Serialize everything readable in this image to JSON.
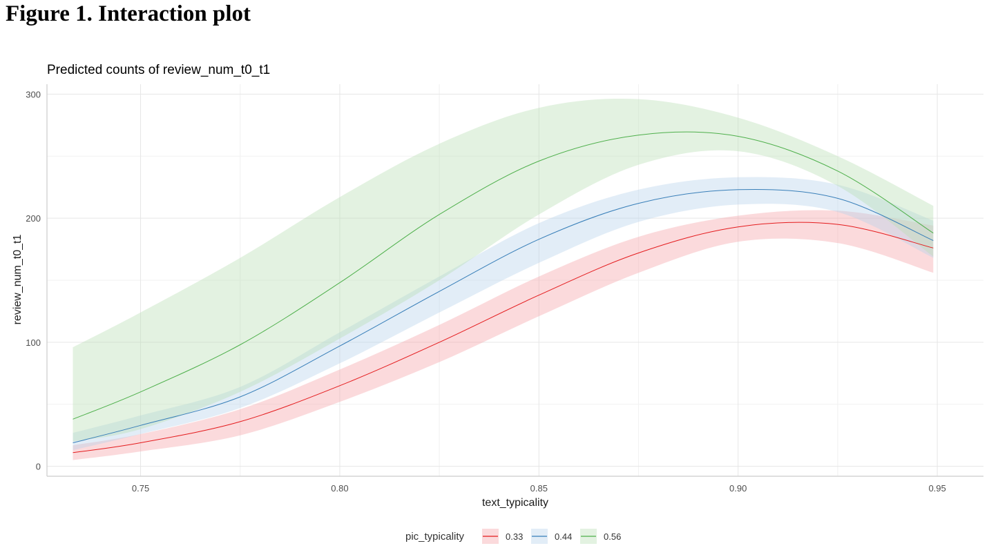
{
  "figure": {
    "caption": "Figure 1. Interaction plot"
  },
  "chart_data": {
    "type": "line",
    "title": "Predicted counts of review_num_t0_t1",
    "xlabel": "text_typicality",
    "ylabel": "review_num_t0_t1",
    "xlim": [
      0.7265,
      0.9616
    ],
    "ylim": [
      -8,
      308
    ],
    "x_ticks": [
      0.75,
      0.8,
      0.85,
      0.9,
      0.95
    ],
    "x_tick_labels": [
      "0.75",
      "0.80",
      "0.85",
      "0.90",
      "0.95"
    ],
    "y_ticks": [
      0,
      100,
      200,
      300
    ],
    "y_tick_labels": [
      "0",
      "100",
      "200",
      "300"
    ],
    "grid": true,
    "legend": {
      "title": "pic_typicality",
      "position": "bottom"
    },
    "x": [
      0.733,
      0.75,
      0.775,
      0.8,
      0.825,
      0.85,
      0.875,
      0.9,
      0.925,
      0.949
    ],
    "series": [
      {
        "name": "0.33",
        "color": "#E41A1C",
        "fill": "#F4A3A8",
        "values": [
          11,
          19,
          36,
          65,
          100,
          138,
          172,
          193,
          195,
          176
        ],
        "lower": [
          5,
          12,
          25,
          52,
          84,
          121,
          156,
          181,
          180,
          156
        ],
        "upper": [
          17,
          26,
          46,
          78,
          114,
          153,
          185,
          202,
          206,
          194
        ]
      },
      {
        "name": "0.44",
        "color": "#377EB8",
        "fill": "#B7D2EA",
        "values": [
          19,
          33,
          56,
          97,
          141,
          183,
          212,
          223,
          216,
          182
        ],
        "lower": [
          13,
          26,
          47,
          83,
          124,
          164,
          197,
          211,
          205,
          168
        ],
        "upper": [
          27,
          41,
          64,
          108,
          153,
          196,
          223,
          233,
          227,
          198
        ]
      },
      {
        "name": "0.56",
        "color": "#4DAF4A",
        "fill": "#B8DEB5",
        "values": [
          38,
          60,
          98,
          148,
          203,
          246,
          267,
          266,
          238,
          188
        ],
        "lower": [
          20,
          30,
          60,
          103,
          150,
          203,
          243,
          254,
          226,
          169
        ],
        "upper": [
          96,
          124,
          168,
          217,
          260,
          289,
          296,
          281,
          250,
          210
        ]
      }
    ]
  }
}
